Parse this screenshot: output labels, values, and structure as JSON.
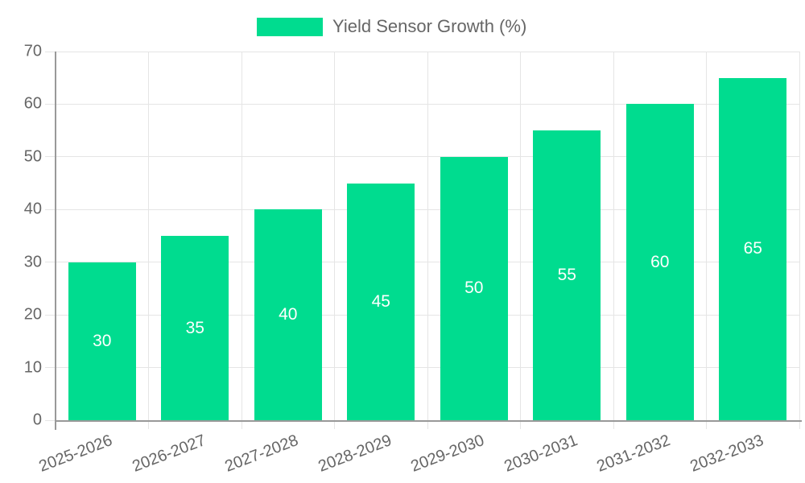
{
  "legend": {
    "position": "top",
    "items": [
      {
        "label": "Yield Sensor Growth (%)",
        "color": "#00DC8F"
      }
    ]
  },
  "chart_data": {
    "type": "bar",
    "title": "Yield Sensor Growth (%)",
    "categories": [
      "2025-2026",
      "2026-2027",
      "2027-2028",
      "2028-2029",
      "2029-2030",
      "2030-2031",
      "2031-2032",
      "2032-2033"
    ],
    "values": [
      30,
      35,
      40,
      45,
      50,
      55,
      60,
      65
    ],
    "data_labels": [
      "30",
      "35",
      "40",
      "45",
      "50",
      "55",
      "60",
      "65"
    ],
    "xlabel": "",
    "ylabel": "",
    "ylim": [
      0,
      70
    ],
    "yticks": [
      0,
      10,
      20,
      30,
      40,
      50,
      60,
      70
    ],
    "grid": true,
    "legend_position": "top",
    "x_label_rotation_deg": -21,
    "colors": {
      "bar": "#00DC8F",
      "data_label": "#FFFFFF",
      "axis_border": "#999999",
      "grid": "#E5E5E5",
      "tick": "#E5E5E5",
      "text": "#666666",
      "background": "#FFFFFF"
    }
  }
}
